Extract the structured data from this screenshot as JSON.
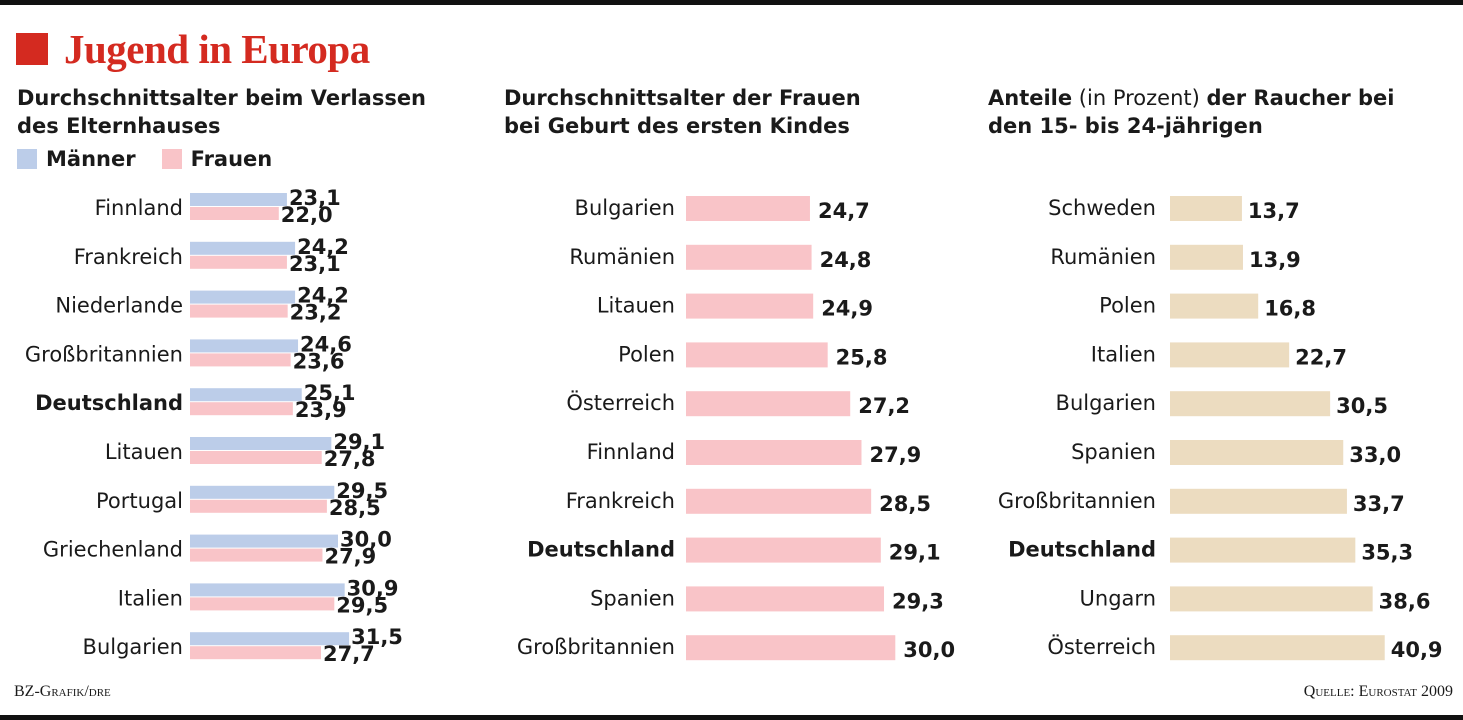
{
  "title": "Jugend in Europa",
  "footer": {
    "credit": "BZ-Grafik/dre",
    "source": "Quelle: Eurostat 2009"
  },
  "colors": {
    "accent": "#d42a20",
    "maenner": "#bccde9",
    "frauen": "#f9c4c8",
    "raucher": "#ecdcc0",
    "text": "#1a1a1a"
  },
  "chart_data": [
    {
      "type": "bar",
      "orientation": "horizontal",
      "title": "Durchschnittsalter beim Verlassen\ndes Elternhauses",
      "categories": [
        "Finnland",
        "Frankreich",
        "Niederlande",
        "Großbritannien",
        "Deutschland",
        "Litauen",
        "Portugal",
        "Griechenland",
        "Italien",
        "Bulgarien"
      ],
      "highlight": "Deutschland",
      "series": [
        {
          "name": "Männer",
          "color": "#bccde9",
          "values": [
            23.1,
            24.2,
            24.2,
            24.6,
            25.1,
            29.1,
            29.5,
            30.0,
            30.9,
            31.5
          ],
          "labels": [
            "23,1",
            "24,2",
            "24,2",
            "24,6",
            "25,1",
            "29,1",
            "29,5",
            "30,0",
            "30,9",
            "31,5"
          ]
        },
        {
          "name": "Frauen",
          "color": "#f9c4c8",
          "values": [
            22.0,
            23.1,
            23.2,
            23.6,
            23.9,
            27.8,
            28.5,
            27.9,
            29.5,
            27.7
          ],
          "labels": [
            "22,0",
            "23,1",
            "23,2",
            "23,6",
            "23,9",
            "27,8",
            "28,5",
            "27,9",
            "29,5",
            "27,7"
          ]
        }
      ],
      "legend": [
        "Männer",
        "Frauen"
      ]
    },
    {
      "type": "bar",
      "orientation": "horizontal",
      "title": "Durchschnittsalter der Frauen\nbei Geburt des ersten Kindes",
      "categories": [
        "Bulgarien",
        "Rumänien",
        "Litauen",
        "Polen",
        "Österreich",
        "Finnland",
        "Frankreich",
        "Deutschland",
        "Spanien",
        "Großbritannien"
      ],
      "highlight": "Deutschland",
      "series": [
        {
          "color": "#f9c4c8",
          "values": [
            24.7,
            24.8,
            24.9,
            25.8,
            27.2,
            27.9,
            28.5,
            29.1,
            29.3,
            30.0
          ],
          "labels": [
            "24,7",
            "24,8",
            "24,9",
            "25,8",
            "27,2",
            "27,9",
            "28,5",
            "29,1",
            "29,3",
            "30,0"
          ]
        }
      ]
    },
    {
      "type": "bar",
      "orientation": "horizontal",
      "title_bold_1": "Anteile",
      "title_normal": " (in Prozent) ",
      "title_bold_2": "der Raucher bei\nden 15- bis 24-jährigen",
      "categories": [
        "Schweden",
        "Rumänien",
        "Polen",
        "Italien",
        "Bulgarien",
        "Spanien",
        "Großbritannien",
        "Deutschland",
        "Ungarn",
        "Österreich"
      ],
      "highlight": "Deutschland",
      "series": [
        {
          "color": "#ecdcc0",
          "values": [
            13.7,
            13.9,
            16.8,
            22.7,
            30.5,
            33.0,
            33.7,
            35.3,
            38.6,
            40.9
          ],
          "labels": [
            "13,7",
            "13,9",
            "16,8",
            "22,7",
            "30,5",
            "33,0",
            "33,7",
            "35,3",
            "38,6",
            "40,9"
          ]
        }
      ]
    }
  ]
}
